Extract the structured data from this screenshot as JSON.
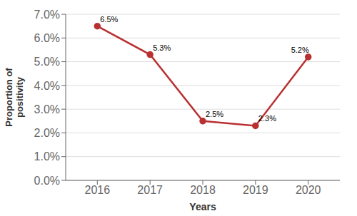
{
  "chart_data": {
    "type": "line",
    "x": [
      2016,
      2017,
      2018,
      2019,
      2020
    ],
    "values": [
      6.5,
      5.3,
      2.5,
      2.3,
      5.2
    ],
    "value_labels": [
      "6.5%",
      "5.3%",
      "2.5%",
      "2.3%",
      "5.2%"
    ],
    "data_labels": true,
    "color": "#b93030",
    "marker": "circle",
    "xlabel": "Years",
    "ylabel": "Proportion of\npositivity",
    "xlim": [
      2015.4,
      2020.6
    ],
    "xticks": [
      2016,
      2017,
      2018,
      2019,
      2020
    ],
    "ylim": [
      0.0,
      7.0
    ],
    "yticks": [
      {
        "value": 0.0,
        "label": "0.0%"
      },
      {
        "value": 1.0,
        "label": "1.0%"
      },
      {
        "value": 2.0,
        "label": "2.0%"
      },
      {
        "value": 3.0,
        "label": "3.0%"
      },
      {
        "value": 4.0,
        "label": "4.0%"
      },
      {
        "value": 5.0,
        "label": "5.0%"
      },
      {
        "value": 6.0,
        "label": "6.0%"
      },
      {
        "value": 7.0,
        "label": "7.0%"
      }
    ],
    "grid": true
  }
}
